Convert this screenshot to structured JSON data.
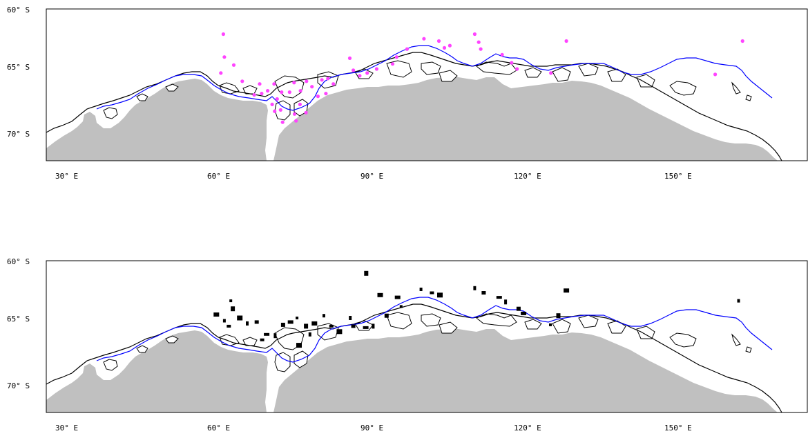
{
  "colors": {
    "land": "#c0c0c0",
    "frame": "#000000",
    "coast": "#000000",
    "ice_edge": "#0000ff",
    "points_top": "#ff44ff",
    "points_bottom": "#000000"
  },
  "maps": [
    {
      "lat_labels": [
        "60° S",
        "65° S",
        "70° S"
      ],
      "lon_labels": [
        "30° E",
        "60° E",
        "90° E",
        "120° E",
        "150° E"
      ],
      "marker_style": "magenta-dots",
      "points": [
        [
          60.3,
          62.2
        ],
        [
          60.5,
          64.2
        ],
        [
          59.8,
          65.5
        ],
        [
          62.4,
          64.9
        ],
        [
          64.1,
          66.1
        ],
        [
          67.6,
          66.3
        ],
        [
          66.5,
          67.1
        ],
        [
          68.0,
          67.0
        ],
        [
          69.2,
          66.8
        ],
        [
          70.5,
          66.3
        ],
        [
          71.1,
          67.4
        ],
        [
          72.0,
          66.9
        ],
        [
          70.1,
          67.8
        ],
        [
          71.8,
          68.2
        ],
        [
          73.6,
          66.9
        ],
        [
          74.5,
          66.2
        ],
        [
          75.8,
          66.8
        ],
        [
          77.0,
          66.1
        ],
        [
          78.1,
          66.5
        ],
        [
          79.3,
          67.2
        ],
        [
          80.1,
          66.0
        ],
        [
          80.9,
          67.0
        ],
        [
          81.3,
          65.9
        ],
        [
          82.4,
          66.3
        ],
        [
          74.6,
          68.5
        ],
        [
          74.9,
          69.0
        ],
        [
          72.2,
          69.1
        ],
        [
          70.6,
          68.3
        ],
        [
          76.9,
          68.4
        ],
        [
          75.7,
          67.8
        ],
        [
          85.7,
          64.3
        ],
        [
          86.4,
          65.3
        ],
        [
          87.7,
          65.7
        ],
        [
          89.2,
          65.5
        ],
        [
          91.1,
          65.2
        ],
        [
          94.3,
          64.8
        ],
        [
          95.1,
          64.2
        ],
        [
          97.2,
          63.5
        ],
        [
          100.6,
          62.6
        ],
        [
          103.6,
          62.8
        ],
        [
          104.7,
          63.4
        ],
        [
          105.8,
          63.2
        ],
        [
          110.8,
          62.2
        ],
        [
          111.6,
          62.9
        ],
        [
          112.0,
          63.5
        ],
        [
          116.3,
          64.0
        ],
        [
          118.2,
          64.7
        ],
        [
          119.3,
          65.2
        ],
        [
          126.1,
          65.5
        ],
        [
          129.2,
          62.8
        ],
        [
          164.6,
          62.8
        ],
        [
          159.1,
          65.6
        ]
      ]
    },
    {
      "lat_labels": [
        "60° S",
        "65° S",
        "70° S"
      ],
      "lon_labels": [
        "30° E",
        "60° E",
        "90° E",
        "120° E",
        "150° E"
      ],
      "marker_style": "black-blobs",
      "points": [
        [
          61.8,
          63.5
        ],
        [
          62.2,
          64.2
        ],
        [
          58.9,
          64.7
        ],
        [
          60.5,
          65.2
        ],
        [
          61.4,
          65.6
        ],
        [
          63.6,
          65.0
        ],
        [
          65.1,
          65.4
        ],
        [
          67.0,
          65.3
        ],
        [
          69.0,
          66.2
        ],
        [
          70.7,
          66.3
        ],
        [
          72.3,
          65.5
        ],
        [
          73.8,
          65.3
        ],
        [
          75.1,
          65.0
        ],
        [
          76.9,
          65.6
        ],
        [
          78.6,
          65.4
        ],
        [
          80.5,
          64.8
        ],
        [
          82.0,
          65.6
        ],
        [
          83.6,
          66.0
        ],
        [
          85.8,
          65.0
        ],
        [
          86.4,
          65.6
        ],
        [
          88.9,
          65.7
        ],
        [
          90.4,
          65.6
        ],
        [
          93.1,
          64.8
        ],
        [
          95.3,
          63.2
        ],
        [
          96.0,
          64.0
        ],
        [
          89.0,
          61.1
        ],
        [
          91.8,
          63.0
        ],
        [
          100.0,
          62.5
        ],
        [
          102.2,
          62.8
        ],
        [
          103.8,
          63.0
        ],
        [
          110.8,
          62.4
        ],
        [
          112.6,
          62.8
        ],
        [
          115.7,
          63.2
        ],
        [
          117.0,
          63.6
        ],
        [
          119.6,
          64.2
        ],
        [
          120.6,
          64.6
        ],
        [
          126.0,
          65.5
        ],
        [
          127.6,
          64.8
        ],
        [
          129.2,
          62.6
        ],
        [
          163.8,
          63.5
        ],
        [
          68.1,
          66.6
        ],
        [
          75.5,
          67.0
        ],
        [
          77.7,
          66.2
        ]
      ]
    }
  ]
}
